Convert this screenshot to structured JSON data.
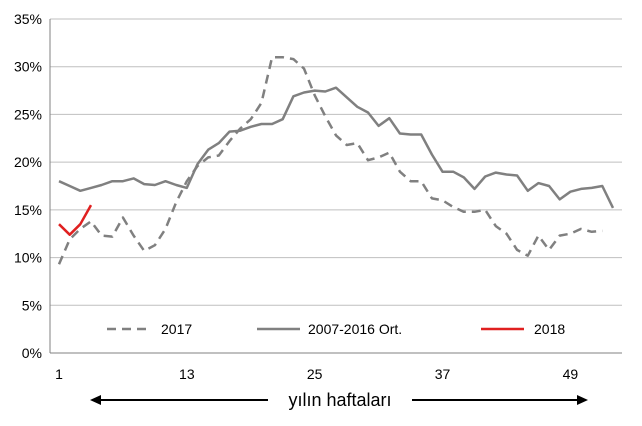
{
  "chart_data": {
    "type": "line",
    "xlabel": "yılın haftaları",
    "ylabel": "",
    "xlim": [
      1,
      53
    ],
    "ylim": [
      0,
      35
    ],
    "x_ticks": [
      1,
      13,
      25,
      37,
      49
    ],
    "y_ticks": [
      0,
      5,
      10,
      15,
      20,
      25,
      30,
      35
    ],
    "y_tick_labels": [
      "0%",
      "5%",
      "10%",
      "15%",
      "20%",
      "25%",
      "30%",
      "35%"
    ],
    "x_tick_labels": [
      "1",
      "13",
      "25",
      "37",
      "49"
    ],
    "grid": "horizontal",
    "legend_position": "bottom",
    "series": [
      {
        "name": "2017",
        "color": "#808080",
        "style": "dashed",
        "x": [
          1,
          2,
          3,
          4,
          5,
          6,
          7,
          8,
          9,
          10,
          11,
          12,
          13,
          14,
          15,
          16,
          17,
          18,
          19,
          20,
          21,
          22,
          23,
          24,
          25,
          26,
          27,
          28,
          29,
          30,
          31,
          32,
          33,
          34,
          35,
          36,
          37,
          38,
          39,
          40,
          41,
          42,
          43,
          44,
          45,
          46,
          47,
          48,
          49,
          50,
          51,
          52
        ],
        "values": [
          9.3,
          11.9,
          13.0,
          13.8,
          12.3,
          12.2,
          14.2,
          12.3,
          10.7,
          11.3,
          13.0,
          15.8,
          18.0,
          19.6,
          20.5,
          20.7,
          22.2,
          23.5,
          24.5,
          26.2,
          31.0,
          31.0,
          30.8,
          29.8,
          27.0,
          24.8,
          22.8,
          21.8,
          22.0,
          20.2,
          20.5,
          21.0,
          19.0,
          18.0,
          18.0,
          16.2,
          16.0,
          15.3,
          14.8,
          14.8,
          15.0,
          13.3,
          12.5,
          10.8,
          10.2,
          12.3,
          10.8,
          12.3,
          12.5,
          13.0,
          12.7,
          12.8
        ]
      },
      {
        "name": "2007-2016 Ort.",
        "color": "#808080",
        "style": "solid",
        "x": [
          1,
          2,
          3,
          4,
          5,
          6,
          7,
          8,
          9,
          10,
          11,
          12,
          13,
          14,
          15,
          16,
          17,
          18,
          19,
          20,
          21,
          22,
          23,
          24,
          25,
          26,
          27,
          28,
          29,
          30,
          31,
          32,
          33,
          34,
          35,
          36,
          37,
          38,
          39,
          40,
          41,
          42,
          43,
          44,
          45,
          46,
          47,
          48,
          49,
          50,
          51,
          52,
          53
        ],
        "values": [
          18.0,
          17.5,
          17.0,
          17.3,
          17.6,
          18.0,
          18.0,
          18.3,
          17.7,
          17.6,
          18.0,
          17.6,
          17.3,
          19.8,
          21.3,
          22.0,
          23.2,
          23.3,
          23.7,
          24.0,
          24.0,
          24.5,
          26.9,
          27.3,
          27.5,
          27.4,
          27.8,
          26.8,
          25.8,
          25.2,
          23.8,
          24.6,
          23.0,
          22.9,
          22.9,
          20.8,
          19.0,
          19.0,
          18.4,
          17.2,
          18.5,
          18.9,
          18.7,
          18.6,
          17.0,
          17.8,
          17.5,
          16.1,
          16.9,
          17.2,
          17.3,
          17.5,
          15.2
        ]
      },
      {
        "name": "2018",
        "color": "#e02020",
        "style": "solid",
        "x": [
          1,
          2,
          3,
          4
        ],
        "values": [
          13.5,
          12.4,
          13.5,
          15.5
        ]
      }
    ]
  }
}
